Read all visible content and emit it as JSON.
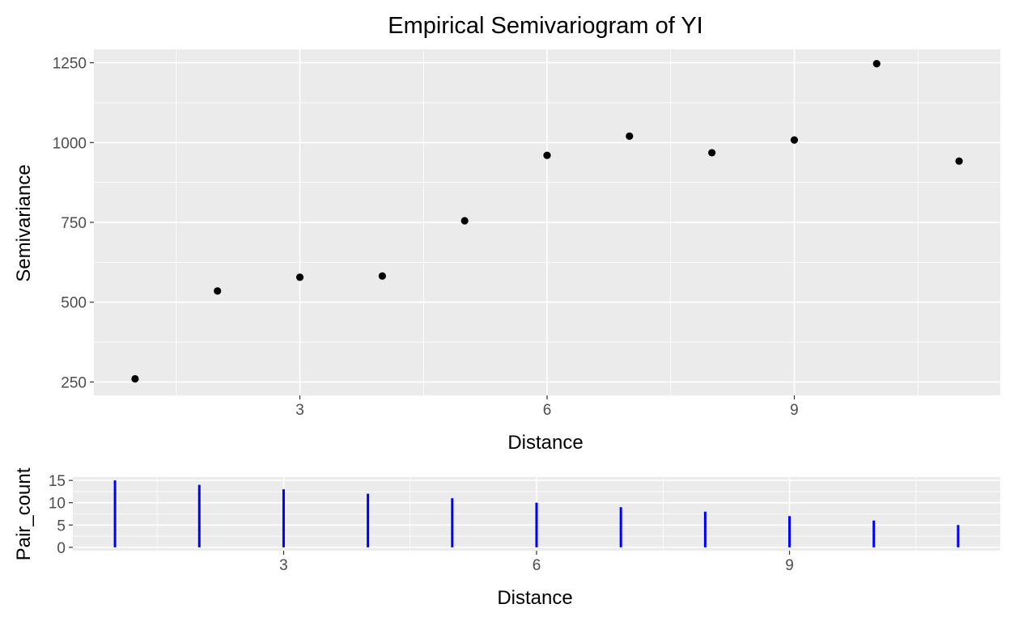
{
  "chart_data": [
    {
      "type": "scatter",
      "title": "Empirical Semivariogram of YI",
      "xlabel": "Distance",
      "ylabel": "Semivariance",
      "x": [
        1,
        2,
        3,
        4,
        5,
        6,
        7,
        8,
        9,
        10,
        11
      ],
      "y": [
        260,
        535,
        578,
        582,
        755,
        960,
        1020,
        968,
        1008,
        1247,
        942
      ],
      "xlim": [
        0.5,
        11.5
      ],
      "ylim": [
        208,
        1292
      ],
      "xticks": [
        3,
        6,
        9
      ],
      "yticks": [
        250,
        500,
        750,
        1000,
        1250
      ],
      "point_color": "#000000",
      "grid": true,
      "legend": "none"
    },
    {
      "type": "bar",
      "xlabel": "Distance",
      "ylabel": "Pair_count",
      "x": [
        1,
        2,
        3,
        4,
        5,
        6,
        7,
        8,
        9,
        10,
        11
      ],
      "values": [
        15,
        14,
        13,
        12,
        11,
        10,
        9,
        8,
        7,
        6,
        5
      ],
      "xlim": [
        0.5,
        11.5
      ],
      "ylim": [
        -0.75,
        15.75
      ],
      "xticks": [
        3,
        6,
        9
      ],
      "yticks": [
        0,
        5,
        10,
        15
      ],
      "bar_color": "#0000ff",
      "grid": true,
      "legend": "none"
    }
  ]
}
